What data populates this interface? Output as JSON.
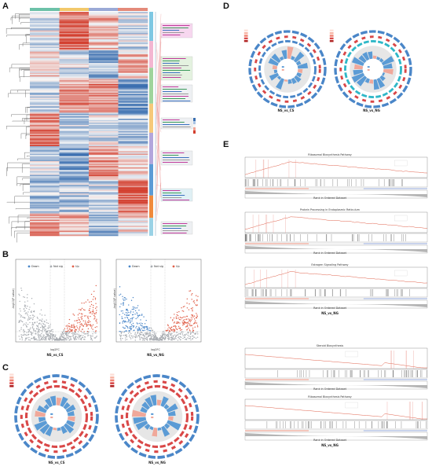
{
  "panels": {
    "A": {
      "label": "A"
    },
    "B": {
      "label": "B",
      "plots": [
        {
          "caption": "NS_vs_CS",
          "legend": [
            "Down",
            "Not sig",
            "Up"
          ],
          "xlabel": "log2FC",
          "ylabel": "-log10(P value)"
        },
        {
          "caption": "NS_vs_NG",
          "legend": [
            "Down",
            "Not sig",
            "Up"
          ],
          "xlabel": "log2FC",
          "ylabel": "-log10(P value)"
        }
      ]
    },
    "C": {
      "label": "C",
      "plots": [
        {
          "caption": "NS_vs_CS"
        },
        {
          "caption": "NS_vs_NG"
        }
      ]
    },
    "D": {
      "label": "D",
      "plots": [
        {
          "caption": "NS_vs_CS"
        },
        {
          "caption": "NS_vs_NG"
        }
      ]
    },
    "E": {
      "label": "E",
      "plots": [
        {
          "title": "Ribosomal Biosynthesis Pathway",
          "xlabel": "Rank in Ordered Dataset"
        },
        {
          "title": "Protein Processing in Endoplasmic Reticulum",
          "xlabel": "Rank in Ordered Dataset"
        },
        {
          "title": "Estrogen Signaling Pathway",
          "xlabel": "Rank in Ordered Dataset",
          "caption": "NS_vs_NG"
        },
        {
          "title": "Steroid Biosynthesis",
          "xlabel": "Rank in Ordered Dataset"
        },
        {
          "title": "Ribosomal Biosynthesis Pathway",
          "xlabel": "Rank in Ordered Dataset",
          "caption": "NS_vs_NG"
        }
      ]
    }
  },
  "colors": {
    "up": "#e0604a",
    "down": "#4a86c8",
    "notsig": "#a9adb2",
    "light_blue": "#bcd3ea",
    "light_red": "#f2c4b8",
    "cyan": "#2fb8c8"
  }
}
